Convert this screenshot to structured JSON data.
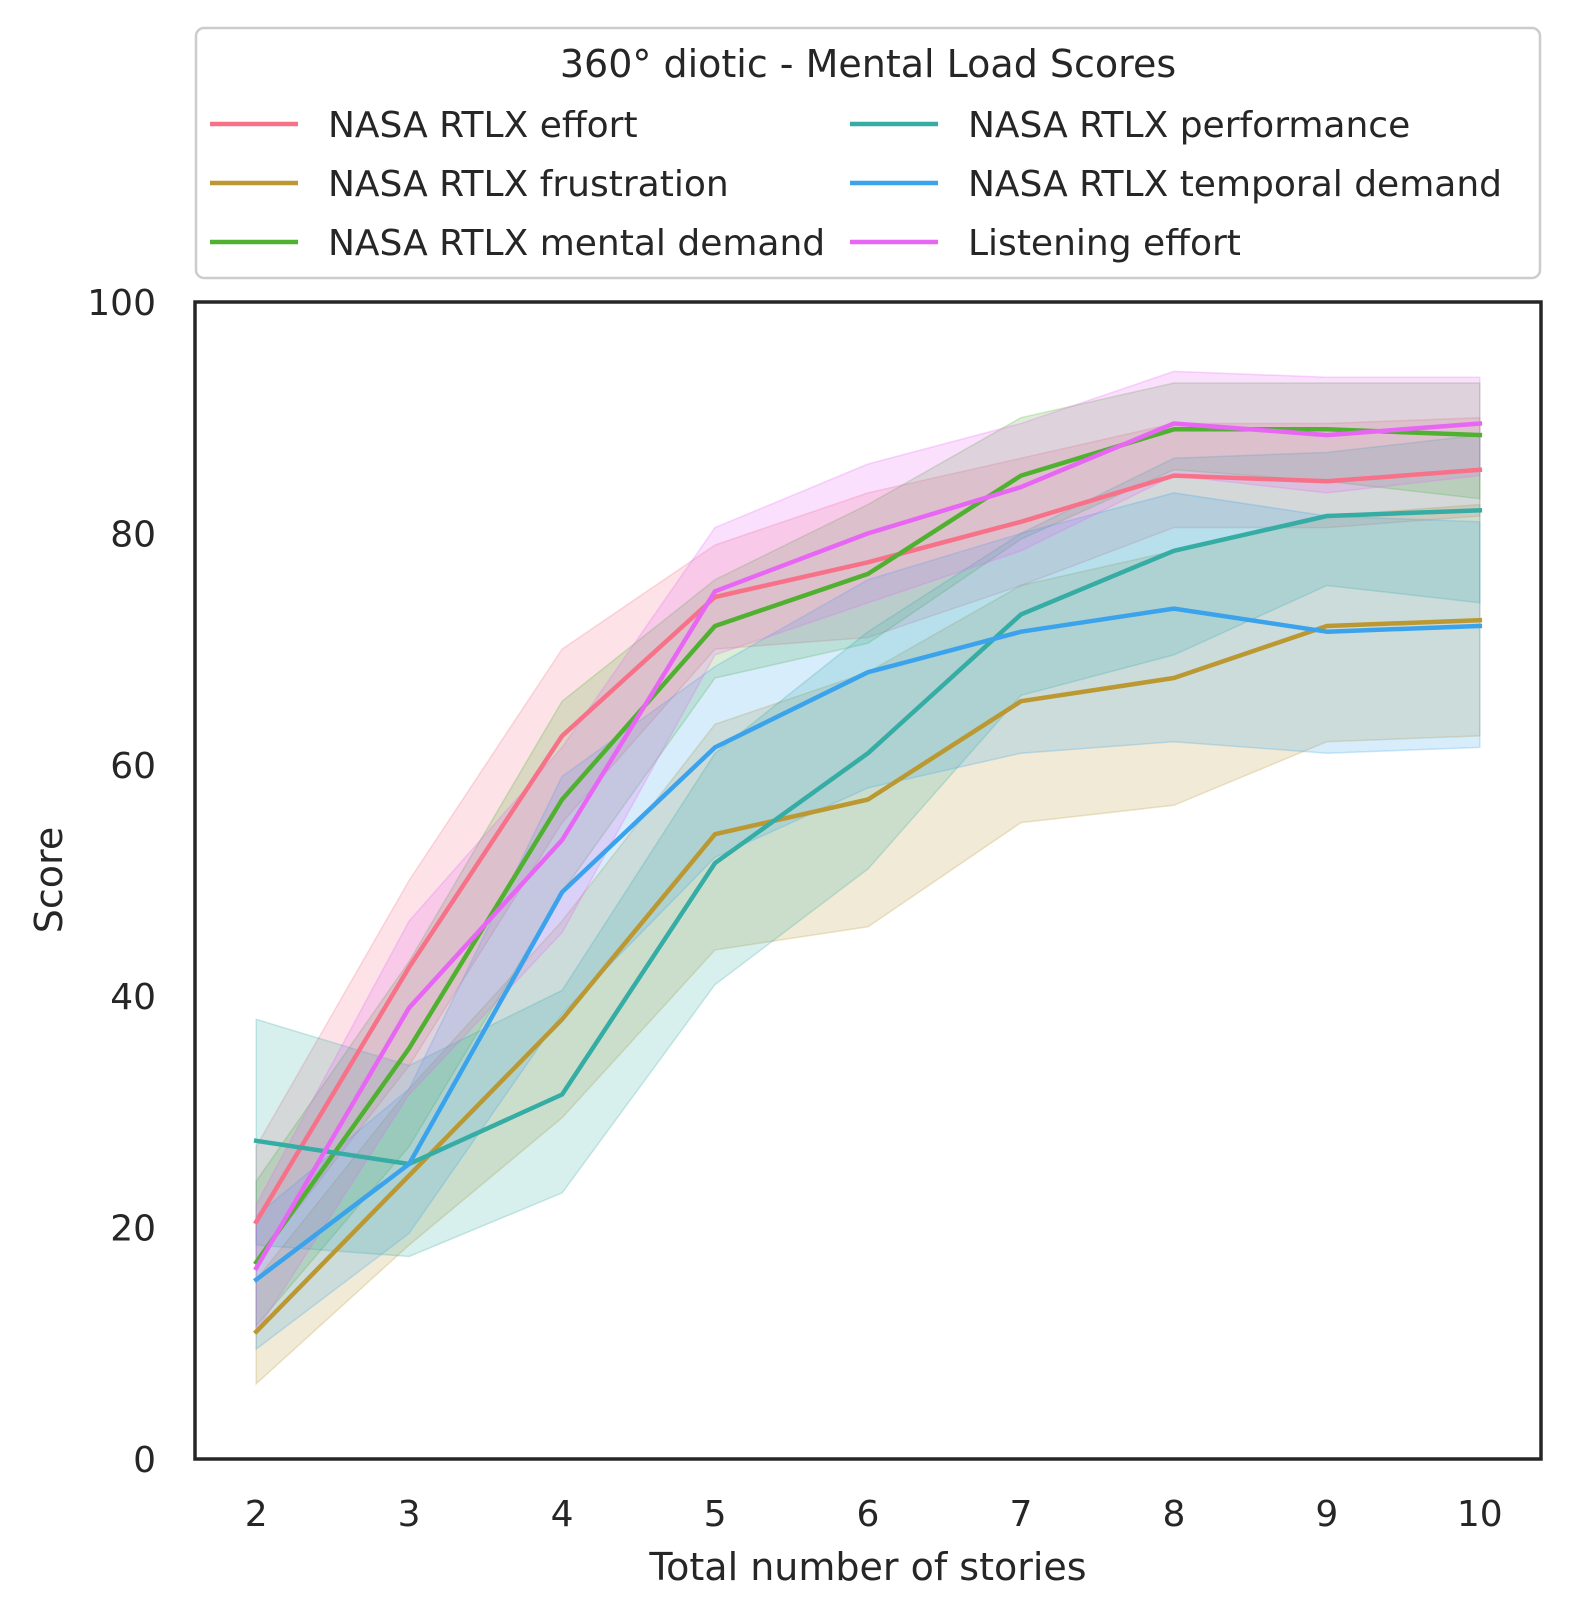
{
  "chart_data": {
    "type": "line",
    "xlabel": "Total number of stories",
    "ylabel": "Score",
    "x": [
      2,
      3,
      4,
      5,
      6,
      7,
      8,
      9,
      10
    ],
    "xticks": [
      "2",
      "3",
      "4",
      "5",
      "6",
      "7",
      "8",
      "9",
      "10"
    ],
    "ylim": [
      0,
      100
    ],
    "yticks": [
      "0",
      "20",
      "40",
      "60",
      "80",
      "100"
    ],
    "grid": false,
    "legend": {
      "title": "360° diotic - Mental Load Scores",
      "placement": "top, above plot, two columns"
    },
    "series": [
      {
        "name": "NASA RTLX effort",
        "color": "#f77189",
        "values": [
          20.5,
          42.5,
          62.5,
          74.5,
          77.5,
          81.0,
          85.0,
          84.5,
          85.5
        ],
        "lower": [
          17.0,
          34.0,
          55.0,
          70.0,
          71.0,
          75.5,
          80.5,
          80.5,
          81.5
        ],
        "upper": [
          27.0,
          50.0,
          70.0,
          79.0,
          83.5,
          86.5,
          89.5,
          89.5,
          90.0
        ]
      },
      {
        "name": "NASA RTLX frustration",
        "color": "#bb9832",
        "values": [
          11.0,
          24.5,
          38.0,
          54.0,
          57.0,
          65.5,
          67.5,
          72.0,
          72.5
        ],
        "lower": [
          6.5,
          18.5,
          29.5,
          44.0,
          46.0,
          55.0,
          56.5,
          62.0,
          62.5
        ],
        "upper": [
          15.5,
          32.0,
          46.5,
          63.5,
          68.0,
          75.5,
          78.5,
          81.5,
          82.5
        ]
      },
      {
        "name": "NASA RTLX mental demand",
        "color": "#50b131",
        "values": [
          17.0,
          35.5,
          57.0,
          72.0,
          76.5,
          85.0,
          89.0,
          89.0,
          88.5
        ],
        "lower": [
          11.5,
          27.0,
          49.0,
          67.5,
          70.5,
          79.5,
          85.5,
          84.5,
          83.0
        ],
        "upper": [
          24.0,
          43.0,
          65.5,
          76.0,
          82.5,
          90.0,
          93.0,
          93.0,
          93.0
        ]
      },
      {
        "name": "NASA RTLX performance",
        "color": "#36ada4",
        "values": [
          27.5,
          25.5,
          31.5,
          51.5,
          61.0,
          73.0,
          78.5,
          81.5,
          82.0
        ],
        "lower": [
          18.5,
          17.5,
          23.0,
          41.0,
          51.0,
          66.0,
          69.5,
          75.5,
          74.0
        ],
        "upper": [
          38.0,
          34.0,
          40.5,
          61.0,
          71.5,
          80.0,
          86.5,
          87.0,
          88.5
        ]
      },
      {
        "name": "NASA RTLX temporal demand",
        "color": "#3ba3ec",
        "values": [
          15.5,
          25.5,
          49.0,
          61.5,
          68.0,
          71.5,
          73.5,
          71.5,
          72.0
        ],
        "lower": [
          9.5,
          19.5,
          38.5,
          52.0,
          58.0,
          61.0,
          62.0,
          61.0,
          61.5
        ],
        "upper": [
          21.0,
          32.0,
          59.0,
          68.5,
          76.0,
          80.0,
          83.5,
          81.5,
          81.0
        ]
      },
      {
        "name": "Listening effort",
        "color": "#e866f4",
        "values": [
          16.5,
          39.0,
          53.5,
          75.0,
          80.0,
          84.0,
          89.5,
          88.5,
          89.5
        ],
        "lower": [
          11.0,
          31.5,
          45.5,
          69.5,
          74.0,
          78.5,
          85.0,
          83.5,
          85.0
        ],
        "upper": [
          22.0,
          46.5,
          61.5,
          80.5,
          86.0,
          89.5,
          94.0,
          93.5,
          93.5
        ]
      }
    ]
  }
}
